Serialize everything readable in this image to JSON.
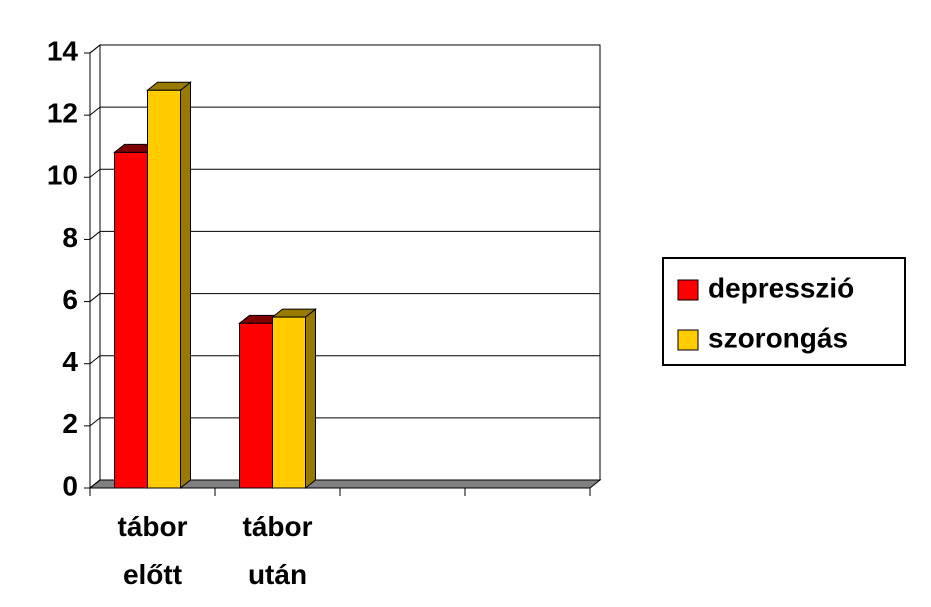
{
  "chart_data": {
    "type": "bar3d",
    "categories": [
      "tábor előtt",
      "tábor után",
      null,
      null
    ],
    "series": [
      {
        "name": "depresszió",
        "color": "#ff0000",
        "values": [
          10.8,
          5.3,
          null,
          null
        ]
      },
      {
        "name": "szorongás",
        "color": "#ffcc00",
        "values": [
          12.8,
          5.5,
          null,
          null
        ]
      }
    ],
    "ylim": [
      0,
      14
    ],
    "yticks": [
      0,
      2,
      4,
      6,
      8,
      10,
      12,
      14
    ],
    "grid": true,
    "legend": "right"
  }
}
